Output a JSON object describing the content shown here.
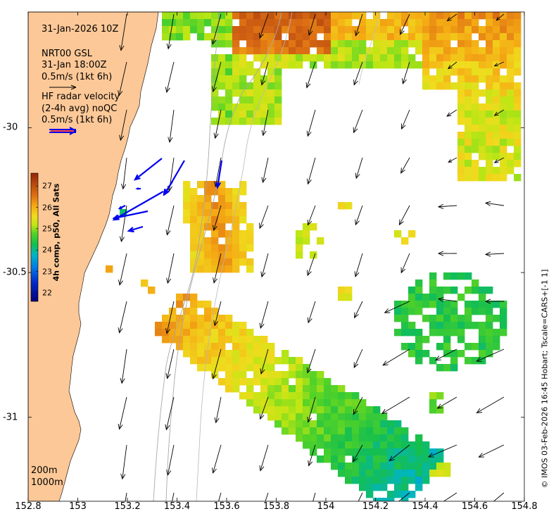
{
  "header": {
    "date": "31-Jan-2026 10Z",
    "model_name": "NRT00 GSL",
    "model_time": "31-Jan 18:00Z",
    "model_scale": "0.5m/s (1kt 6h)",
    "radar_title": "HF radar velocity",
    "radar_subtitle": "(2-4h avg) noQC",
    "radar_scale": "0.5m/s (1kt 6h)"
  },
  "colorbar": {
    "label": "4h comp, p50, All Sats",
    "ticks": [
      "27",
      "26",
      "25",
      "24",
      "23",
      "22"
    ],
    "tick_values": [
      27,
      26,
      25,
      24,
      23,
      22
    ],
    "range": [
      21.6,
      27.6
    ]
  },
  "axes": {
    "x_ticks": [
      "152.8",
      "153",
      "153.2",
      "153.4",
      "153.6",
      "153.8",
      "154",
      "154.2",
      "154.4",
      "154.6",
      "154.8"
    ],
    "x_tick_values": [
      152.8,
      153.0,
      153.2,
      153.4,
      153.6,
      153.8,
      154.0,
      154.2,
      154.4,
      154.6,
      154.8
    ],
    "y_ticks": [
      "-30",
      "-30.5",
      "-31"
    ],
    "y_tick_values": [
      -30.0,
      -30.5,
      -31.0
    ],
    "xlim": [
      152.8,
      154.8
    ],
    "ylim": [
      -31.29,
      -29.6
    ]
  },
  "depth_legend": {
    "shallow": "200m",
    "deep": "1000m"
  },
  "credit": "© IMOS 03-Feb-2026 16:45 Hobart; Tscale=CARS+[-1 1]",
  "colors": {
    "land": "#fdc897",
    "model_arrow": "#000000",
    "radar_arrow": "#0000ee",
    "scale_arrow_red": "#ff0000",
    "contour": "#a8a8a8"
  }
}
